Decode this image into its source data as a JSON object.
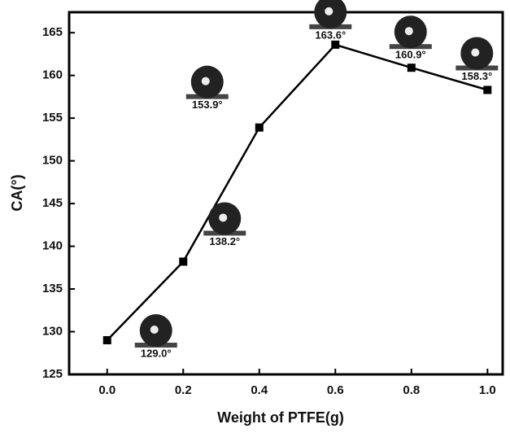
{
  "chart_data": {
    "type": "line",
    "x_label": "Weight of PTFE(g)",
    "y_label": "CA(°)",
    "x": [
      0,
      0.2,
      0.4,
      0.6,
      0.8,
      1
    ],
    "series": [
      {
        "color": "#000000",
        "values": [
          129.0,
          138.2,
          153.9,
          163.6,
          160.9,
          158.3
        ],
        "value_labels": [
          "129.0°",
          "138.2°",
          "153.9°",
          "163.6°",
          "160.9°",
          "158.3°"
        ]
      }
    ],
    "xlim": [
      -0.1,
      1.04
    ],
    "ylim": [
      125,
      167.4
    ],
    "xticks": [
      {
        "value": 0,
        "label": "0.0"
      },
      0.2,
      0.4,
      0.6,
      0.8,
      {
        "value": 1,
        "label": "1.0"
      }
    ],
    "yticks": [
      125,
      130,
      135,
      140,
      145,
      150,
      155,
      160,
      165
    ]
  }
}
